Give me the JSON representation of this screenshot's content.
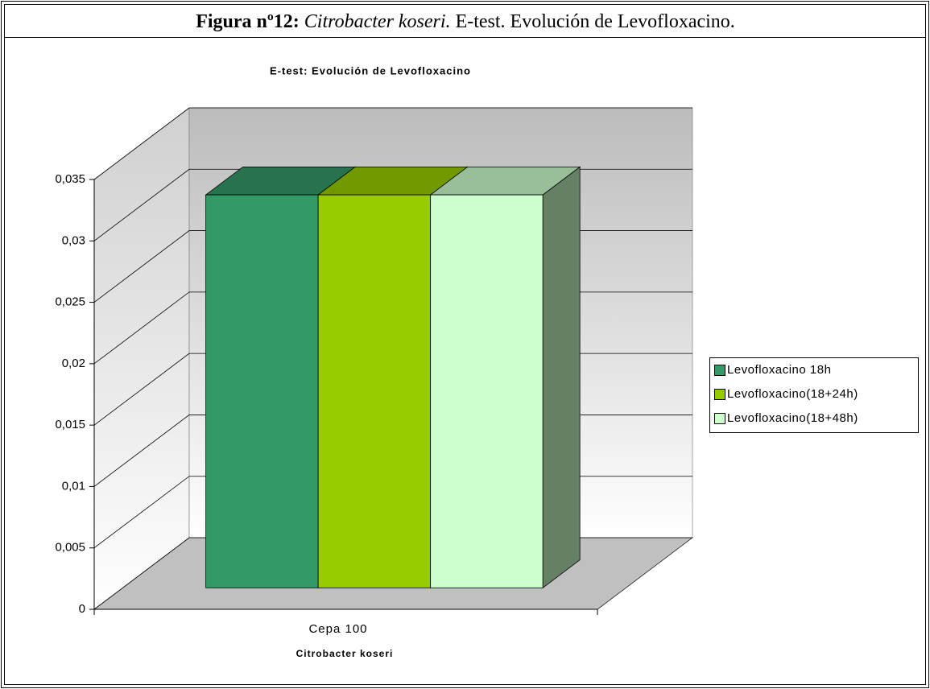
{
  "figure": {
    "caption_label": "Figura nº12:",
    "caption_species": "Citrobacter koseri.",
    "caption_text": "E-test. Evolución de Levofloxacino."
  },
  "chart_data": {
    "type": "bar3d",
    "title": "E-test: Evolución de Levofloxacino",
    "categories": [
      "Cepa 100"
    ],
    "xlabel": "Citrobacter koseri",
    "series": [
      {
        "name": "Levofloxacino 18h",
        "color": "#339966",
        "values": [
          0.032
        ]
      },
      {
        "name": "Levofloxacino(18+24h)",
        "color": "#99cc00",
        "values": [
          0.032
        ]
      },
      {
        "name": "Levofloxacino(18+48h)",
        "color": "#ccffcc",
        "values": [
          0.032
        ]
      }
    ],
    "ylim": [
      0,
      0.035
    ],
    "yticks": [
      0,
      {
        "value": 0.005,
        "label": "0,005"
      },
      {
        "value": 0.01,
        "label": "0,01"
      },
      {
        "value": 0.015,
        "label": "0,015"
      },
      {
        "value": 0.02,
        "label": "0,02"
      },
      {
        "value": 0.025,
        "label": "0,025"
      },
      {
        "value": 0.03,
        "label": "0,03"
      },
      {
        "value": 0.035,
        "label": "0,035"
      }
    ],
    "grid": true,
    "legend": "right"
  }
}
